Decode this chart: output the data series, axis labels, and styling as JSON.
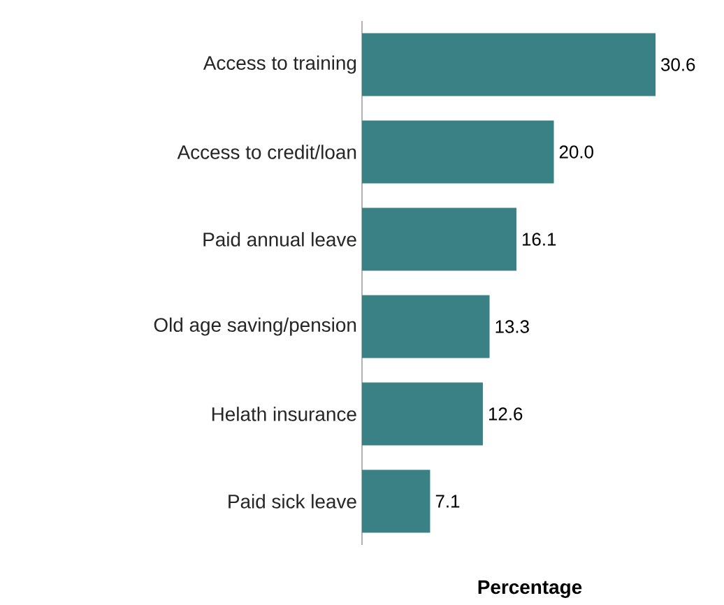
{
  "chart_data": {
    "type": "bar",
    "orientation": "horizontal",
    "xlabel": "Percentage",
    "categories": [
      "Access to training",
      "Access to credit/loan",
      "Paid annual leave",
      "Old age saving/pension",
      "Helath insurance",
      "Paid sick leave"
    ],
    "values": [
      30.6,
      20.0,
      16.1,
      13.3,
      12.6,
      7.1
    ],
    "value_labels": [
      "30.6",
      "20.0",
      "16.1",
      "13.3",
      "12.6",
      "7.1"
    ],
    "color": "#3a8186"
  }
}
